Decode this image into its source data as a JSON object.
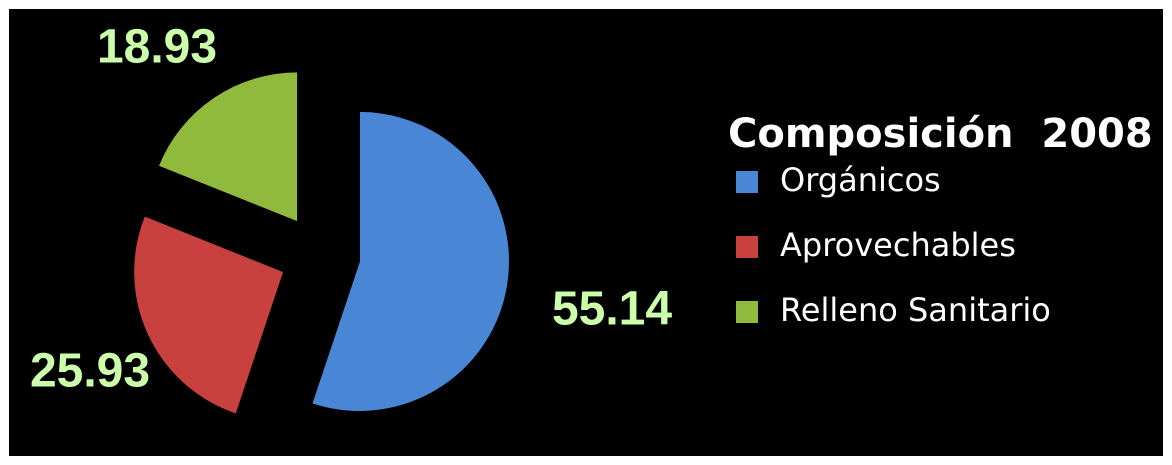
{
  "chart_data": {
    "type": "pie",
    "title": "Composición  2008",
    "categories": [
      "Orgánicos",
      "Aprovechables",
      "Relleno Sanitario"
    ],
    "values": [
      55.14,
      25.93,
      18.93
    ],
    "colors": [
      "#4a86d6",
      "#c8413e",
      "#8fba3c"
    ],
    "legend": "right",
    "exploded": true
  }
}
